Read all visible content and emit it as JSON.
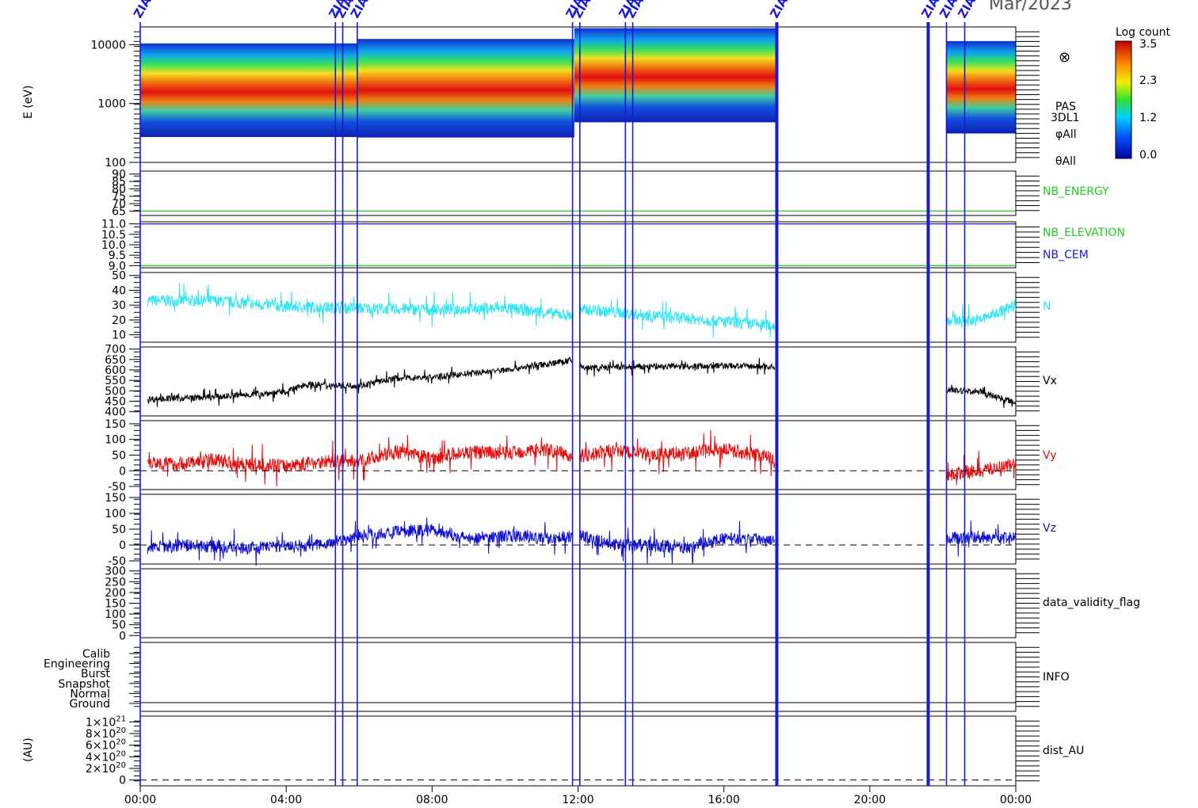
{
  "header": {
    "date_text": "Mar/2023"
  },
  "colorbar": {
    "title": "Log count",
    "ticks": [
      "3.5",
      "2.3",
      "1.2",
      "0.0"
    ]
  },
  "event_labels": [
    "ZIAS",
    "ZIAS",
    "ZIAS",
    "ZIAS",
    "ZIAS",
    "ZIAS",
    "ZIAS",
    "ZIAS",
    "ZIAS",
    "ZIAS"
  ],
  "colors": {
    "axis": "#000000",
    "event_line": "#1a1ad6",
    "N": "#33e5f0",
    "Vx": "#000000",
    "Vy": "#e01010",
    "Vz": "#1010d0",
    "nb": "#22cc22",
    "nb_cem": "#1a1ad6"
  },
  "chart_data": [
    {
      "type": "heatmap",
      "panel": "spectrogram",
      "ylabel": "E (eV)",
      "yscale": "log",
      "ylim": [
        100,
        20000
      ],
      "yticks": [
        "10000",
        "1000",
        "100"
      ],
      "right_labels": [
        "PAS",
        "3DL1",
        "φAll",
        "θAll"
      ],
      "colorbar_range": [
        0.0,
        3.5
      ],
      "symbol": "⊗"
    },
    {
      "type": "line",
      "panel": "nb_energy",
      "yticks": [
        "90",
        "85",
        "80",
        "75",
        "70",
        "65"
      ],
      "ylim": [
        62,
        92
      ],
      "series": [
        {
          "name": "NB_ENERGY",
          "value": 65
        }
      ]
    },
    {
      "type": "line",
      "panel": "nb_elevation",
      "yticks": [
        "11.0",
        "10.5",
        "10.0",
        "9.5",
        "9.0"
      ],
      "ylim": [
        8.9,
        11.1
      ],
      "series": [
        {
          "name": "NB_ELEVATION",
          "value": 9.0
        },
        {
          "name": "NB_CEM",
          "value": 11.0
        }
      ]
    },
    {
      "type": "line",
      "panel": "N",
      "yticks": [
        "50",
        "40",
        "30",
        "20",
        "10"
      ],
      "ylim": [
        5,
        52
      ],
      "series": [
        {
          "name": "N",
          "x": [
            0.2,
            2,
            4,
            6,
            8,
            10,
            11.8,
            12.2,
            14,
            16,
            17.4,
            22,
            23,
            24
          ],
          "y": [
            33,
            33,
            29,
            28,
            27,
            28,
            23,
            27,
            23,
            19,
            16,
            20,
            20,
            30
          ]
        }
      ]
    },
    {
      "type": "line",
      "panel": "Vx",
      "yticks": [
        "700",
        "650",
        "600",
        "550",
        "500",
        "450",
        "400"
      ],
      "ylim": [
        380,
        710
      ],
      "series": [
        {
          "name": "Vx",
          "x": [
            0.2,
            2,
            4,
            4.5,
            6,
            7,
            8,
            10,
            11.8,
            12.2,
            14,
            16,
            17.4,
            22,
            23,
            24
          ],
          "y": [
            460,
            470,
            495,
            530,
            525,
            560,
            565,
            600,
            645,
            610,
            615,
            620,
            615,
            505,
            495,
            445
          ]
        }
      ]
    },
    {
      "type": "line",
      "panel": "Vy",
      "yticks": [
        "150",
        "100",
        "50",
        "0",
        "-50"
      ],
      "ylim": [
        -60,
        160
      ],
      "zero_line": true,
      "series": [
        {
          "name": "Vy",
          "x": [
            0.2,
            1,
            2,
            3,
            4,
            5,
            6,
            7,
            8,
            9,
            10,
            11,
            12,
            13,
            14,
            15,
            16,
            17.4,
            22,
            23,
            24
          ],
          "y": [
            30,
            20,
            35,
            20,
            15,
            30,
            30,
            60,
            40,
            60,
            55,
            70,
            45,
            65,
            50,
            55,
            70,
            40,
            -15,
            0,
            20
          ]
        }
      ]
    },
    {
      "type": "line",
      "panel": "Vz",
      "yticks": [
        "150",
        "100",
        "50",
        "0",
        "-50"
      ],
      "ylim": [
        -60,
        160
      ],
      "zero_line": true,
      "series": [
        {
          "name": "Vz",
          "x": [
            0.2,
            1,
            2,
            3,
            4,
            5,
            6,
            7,
            8,
            9,
            10,
            11,
            12,
            13,
            14,
            15,
            16,
            17.4,
            22,
            23,
            24
          ],
          "y": [
            -10,
            0,
            -5,
            -10,
            0,
            0,
            30,
            40,
            50,
            20,
            30,
            20,
            30,
            0,
            0,
            -10,
            20,
            20,
            20,
            25,
            20
          ]
        }
      ]
    },
    {
      "type": "line",
      "panel": "data_validity_flag",
      "yticks": [
        "300",
        "250",
        "200",
        "150",
        "100",
        "50",
        "0"
      ],
      "ylim": [
        -10,
        310
      ],
      "series": [
        {
          "name": "data_validity_flag",
          "values": []
        }
      ]
    },
    {
      "type": "line",
      "panel": "INFO",
      "yticks": [
        "Calib",
        "Engineering",
        "Burst",
        "Snapshot",
        "Normal",
        "Ground"
      ],
      "series": [
        {
          "name": "INFO",
          "values": []
        }
      ]
    },
    {
      "type": "line",
      "panel": "dist_AU",
      "ylabel": "(AU)",
      "ylim": [
        -1e+20,
        1.1e+21
      ],
      "yticks": [
        {
          "m": "1",
          "e": "21"
        },
        {
          "m": "8",
          "e": "20"
        },
        {
          "m": "6",
          "e": "20"
        },
        {
          "m": "4",
          "e": "20"
        },
        {
          "m": "2",
          "e": "20"
        },
        {
          "m": "0",
          "e": ""
        }
      ],
      "zero_line": true,
      "series": [
        {
          "name": "dist_AU",
          "values": []
        }
      ]
    }
  ],
  "xaxis": {
    "ticks": [
      "00:00",
      "04:00",
      "08:00",
      "12:00",
      "16:00",
      "20:00",
      "00:00"
    ],
    "xlim": [
      0,
      24
    ]
  },
  "events": [
    0.0,
    5.35,
    5.55,
    5.95,
    11.85,
    12.05,
    13.3,
    13.5,
    17.45,
    21.6,
    22.1,
    22.6
  ]
}
